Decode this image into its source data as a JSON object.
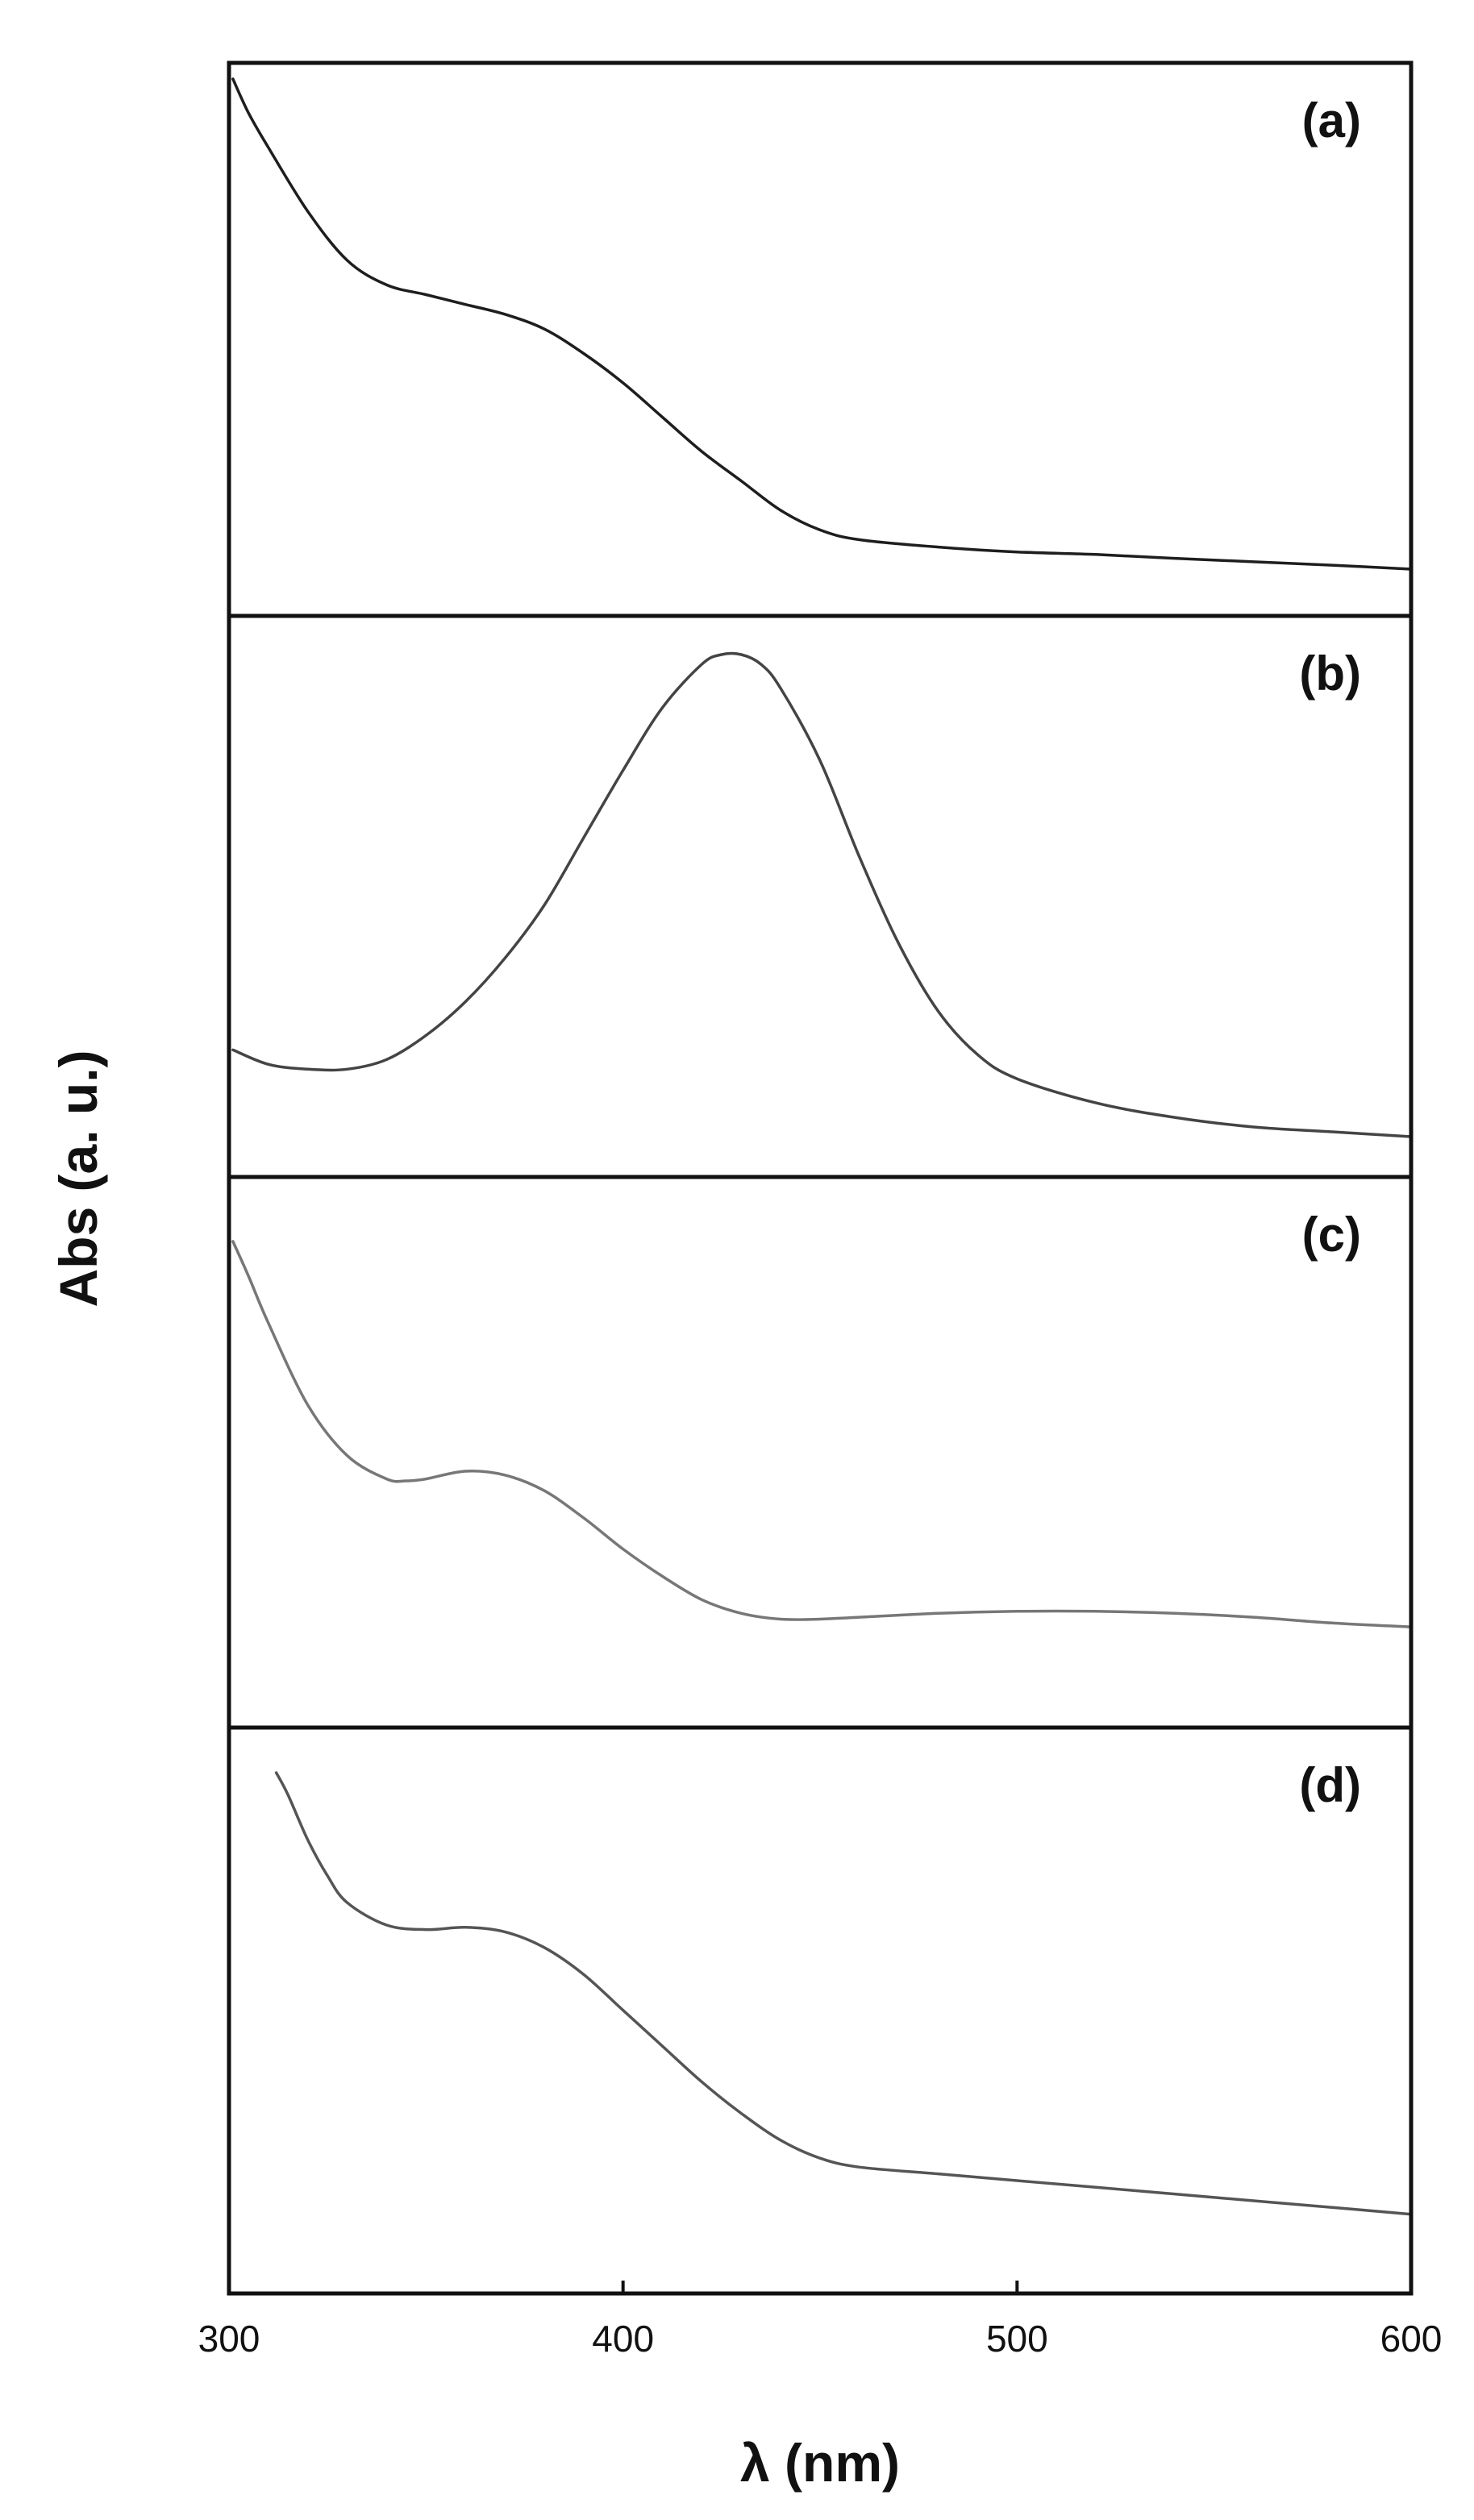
{
  "chart_data": {
    "type": "line",
    "xlabel": "λ (nm)",
    "ylabel": "Abs (a. u.)",
    "xlim": [
      300,
      600
    ],
    "x_ticks": [
      "300",
      "400",
      "500",
      "600"
    ],
    "grid": false,
    "legend": "none",
    "panels": [
      {
        "label": "(a)",
        "color": "#1e1e1e",
        "ylim": [
          0,
          1
        ],
        "x": [
          301,
          305,
          310,
          320,
          330,
          340,
          350,
          360,
          370,
          380,
          390,
          400,
          410,
          420,
          430,
          440,
          450,
          460,
          480,
          500,
          520,
          540,
          560,
          580,
          600
        ],
        "y": [
          1.0,
          0.93,
          0.86,
          0.73,
          0.63,
          0.58,
          0.56,
          0.54,
          0.52,
          0.49,
          0.44,
          0.38,
          0.31,
          0.24,
          0.18,
          0.12,
          0.08,
          0.06,
          0.045,
          0.035,
          0.03,
          0.022,
          0.015,
          0.008,
          0.0
        ]
      },
      {
        "label": "(b)",
        "color": "#444444",
        "ylim": [
          0,
          1
        ],
        "x": [
          301,
          310,
          320,
          330,
          340,
          350,
          360,
          370,
          380,
          390,
          400,
          410,
          420,
          425,
          430,
          435,
          440,
          450,
          460,
          470,
          480,
          490,
          500,
          520,
          540,
          560,
          580,
          600
        ],
        "y": [
          0.18,
          0.15,
          0.14,
          0.14,
          0.16,
          0.21,
          0.28,
          0.37,
          0.48,
          0.62,
          0.76,
          0.89,
          0.98,
          1.0,
          1.0,
          0.98,
          0.93,
          0.78,
          0.58,
          0.4,
          0.26,
          0.17,
          0.12,
          0.07,
          0.04,
          0.02,
          0.01,
          0.0
        ]
      },
      {
        "label": "(c)",
        "color": "#777777",
        "ylim": [
          0,
          1
        ],
        "x": [
          301,
          305,
          310,
          320,
          330,
          340,
          345,
          350,
          360,
          370,
          380,
          390,
          400,
          410,
          420,
          430,
          440,
          450,
          460,
          480,
          500,
          520,
          540,
          560,
          580,
          600
        ],
        "y": [
          1.0,
          0.91,
          0.79,
          0.58,
          0.45,
          0.39,
          0.385,
          0.39,
          0.41,
          0.4,
          0.36,
          0.29,
          0.21,
          0.14,
          0.08,
          0.045,
          0.03,
          0.03,
          0.035,
          0.045,
          0.05,
          0.05,
          0.045,
          0.035,
          0.02,
          0.01
        ]
      },
      {
        "label": "(d)",
        "color": "#555555",
        "ylim": [
          0,
          1
        ],
        "x": [
          312,
          315,
          320,
          325,
          330,
          340,
          350,
          360,
          370,
          380,
          390,
          400,
          410,
          420,
          430,
          440,
          450,
          460,
          480,
          500,
          520,
          540,
          560,
          580,
          600
        ],
        "y": [
          1.0,
          0.95,
          0.85,
          0.77,
          0.71,
          0.66,
          0.65,
          0.655,
          0.645,
          0.61,
          0.55,
          0.47,
          0.39,
          0.31,
          0.24,
          0.18,
          0.14,
          0.12,
          0.105,
          0.09,
          0.075,
          0.06,
          0.045,
          0.03,
          0.015
        ]
      }
    ]
  }
}
